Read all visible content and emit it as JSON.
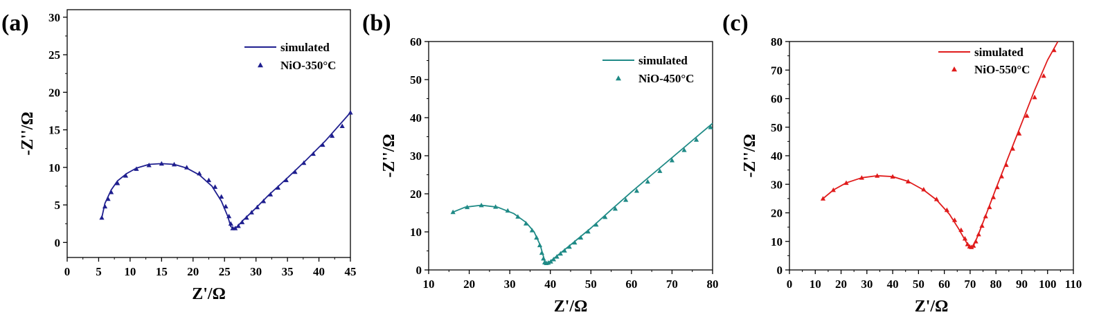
{
  "chart_data": [
    {
      "type": "scatter",
      "panel_label": "(a)",
      "xlabel": "Z'/Ω",
      "ylabel": "-Z''/Ω",
      "xlim": [
        0,
        45
      ],
      "ylim": [
        -2,
        31
      ],
      "xticks": [
        0,
        5,
        10,
        15,
        20,
        25,
        30,
        35,
        40,
        45
      ],
      "yticks": [
        0,
        5,
        10,
        15,
        20,
        25,
        30
      ],
      "color": "#1f1f8f",
      "legend_position": "top-right",
      "legend": [
        "simulated",
        "NiO-350°C"
      ],
      "series": [
        {
          "name": "simulated",
          "style": "line",
          "x": [
            5.5,
            6.0,
            7.0,
            8.0,
            9.5,
            11.0,
            13.0,
            15.0,
            17.0,
            19.0,
            21.0,
            23.0,
            24.5,
            25.5,
            26.0,
            26.5,
            27.0,
            28.0,
            30.0,
            32.0,
            35.0,
            38.0,
            41.0,
            45.0
          ],
          "y": [
            3.3,
            5.2,
            7.0,
            8.2,
            9.2,
            9.9,
            10.4,
            10.5,
            10.4,
            9.9,
            9.0,
            7.5,
            5.5,
            3.5,
            2.1,
            1.9,
            2.1,
            3.0,
            4.6,
            6.3,
            8.6,
            11.0,
            13.5,
            17.3
          ]
        },
        {
          "name": "NiO-350°C",
          "style": "marker",
          "x": [
            5.5,
            6.0,
            6.5,
            7.0,
            8.0,
            9.3,
            11.0,
            13.0,
            15.0,
            17.0,
            19.0,
            21.0,
            22.5,
            23.5,
            24.5,
            25.2,
            25.7,
            26.0,
            26.3,
            26.7,
            27.2,
            27.8,
            28.5,
            29.3,
            30.2,
            31.2,
            32.3,
            33.5,
            34.8,
            36.2,
            37.6,
            39.1,
            40.6,
            42.1,
            43.7,
            45.0
          ],
          "y": [
            3.3,
            4.8,
            5.8,
            6.7,
            7.9,
            8.9,
            9.8,
            10.3,
            10.5,
            10.4,
            10.0,
            9.2,
            8.3,
            7.4,
            6.1,
            4.8,
            3.5,
            2.5,
            1.9,
            1.9,
            2.2,
            2.7,
            3.3,
            4.0,
            4.7,
            5.5,
            6.4,
            7.3,
            8.3,
            9.4,
            10.6,
            11.8,
            13.0,
            14.2,
            15.5,
            17.3
          ]
        }
      ]
    },
    {
      "type": "scatter",
      "panel_label": "(b)",
      "xlabel": "Z'/Ω",
      "ylabel": "-Z''/Ω",
      "xlim": [
        10,
        80
      ],
      "ylim": [
        0,
        60
      ],
      "xticks": [
        10,
        20,
        30,
        40,
        50,
        60,
        70,
        80
      ],
      "yticks": [
        0,
        10,
        20,
        30,
        40,
        50,
        60
      ],
      "color": "#1f8a86",
      "legend_position": "top-right",
      "legend": [
        "simulated",
        "NiO-450°C"
      ],
      "series": [
        {
          "name": "simulated",
          "style": "line",
          "x": [
            16.0,
            19.0,
            23.0,
            27.0,
            31.0,
            34.0,
            36.0,
            37.5,
            38.3,
            38.7,
            39.2,
            40.0,
            42.0,
            45.0,
            50.0,
            55.0,
            60.0,
            65.0,
            70.0,
            75.0,
            80.0
          ],
          "y": [
            15.2,
            16.5,
            17.0,
            16.5,
            14.8,
            12.5,
            10.0,
            6.5,
            3.5,
            2.0,
            1.8,
            2.3,
            4.0,
            6.6,
            11.0,
            15.8,
            20.5,
            25.0,
            29.5,
            34.0,
            38.5
          ]
        },
        {
          "name": "NiO-450°C",
          "style": "marker",
          "x": [
            16.0,
            19.5,
            23.0,
            26.5,
            29.5,
            32.0,
            34.0,
            35.5,
            36.6,
            37.4,
            37.9,
            38.3,
            38.6,
            39.0,
            39.5,
            40.1,
            40.8,
            41.6,
            42.5,
            43.5,
            44.7,
            46.0,
            47.5,
            49.3,
            51.3,
            53.5,
            56.0,
            58.6,
            61.3,
            64.0,
            67.0,
            70.0,
            73.0,
            76.0,
            79.5
          ],
          "y": [
            15.2,
            16.5,
            17.0,
            16.6,
            15.6,
            14.0,
            12.2,
            10.4,
            8.5,
            6.5,
            4.5,
            3.0,
            2.0,
            1.8,
            1.9,
            2.2,
            2.8,
            3.5,
            4.3,
            5.1,
            6.1,
            7.2,
            8.5,
            10.1,
            11.9,
            13.9,
            16.1,
            18.4,
            20.8,
            23.2,
            26.0,
            28.8,
            31.5,
            34.2,
            37.5
          ]
        }
      ]
    },
    {
      "type": "scatter",
      "panel_label": "(c)",
      "xlabel": "Z'/Ω",
      "ylabel": "-Z''/Ω",
      "xlim": [
        0,
        110
      ],
      "ylim": [
        0,
        80
      ],
      "xticks": [
        0,
        10,
        20,
        30,
        40,
        50,
        60,
        70,
        80,
        90,
        100,
        110
      ],
      "yticks": [
        0,
        10,
        20,
        30,
        40,
        50,
        60,
        70,
        80
      ],
      "color": "#e01b1b",
      "legend_position": "top-left",
      "legend": [
        "simulated",
        "NiO-550°C"
      ],
      "series": [
        {
          "name": "simulated",
          "style": "line",
          "x": [
            13.0,
            17.0,
            22.0,
            28.0,
            34.0,
            40.0,
            46.0,
            52.0,
            57.0,
            62.0,
            65.5,
            68.0,
            69.5,
            70.5,
            71.5,
            73.0,
            76.0,
            80.0,
            85.0,
            90.0,
            95.0,
            100.0,
            104.0
          ],
          "y": [
            25.0,
            28.0,
            30.5,
            32.3,
            33.0,
            32.7,
            31.0,
            28.0,
            24.5,
            19.5,
            14.5,
            10.5,
            8.3,
            8.0,
            8.8,
            12.0,
            19.0,
            28.5,
            40.0,
            51.5,
            63.0,
            73.5,
            80.0
          ]
        },
        {
          "name": "NiO-550°C",
          "style": "marker",
          "x": [
            13.0,
            17.0,
            22.0,
            28.0,
            34.0,
            40.0,
            46.0,
            52.0,
            57.0,
            61.0,
            64.0,
            66.5,
            68.0,
            69.0,
            69.8,
            70.5,
            71.3,
            72.2,
            73.3,
            74.6,
            76.0,
            77.5,
            79.0,
            80.5,
            82.2,
            84.0,
            86.5,
            89.0,
            92.0,
            95.0,
            98.5,
            102.5
          ],
          "y": [
            25.0,
            28.0,
            30.5,
            32.3,
            33.0,
            32.7,
            31.0,
            28.2,
            24.8,
            21.0,
            17.5,
            14.0,
            11.0,
            9.0,
            8.2,
            8.0,
            8.5,
            10.0,
            12.5,
            15.5,
            18.8,
            22.0,
            25.5,
            29.0,
            32.8,
            36.8,
            42.5,
            47.8,
            54.0,
            60.5,
            68.0,
            77.0
          ]
        }
      ]
    }
  ]
}
